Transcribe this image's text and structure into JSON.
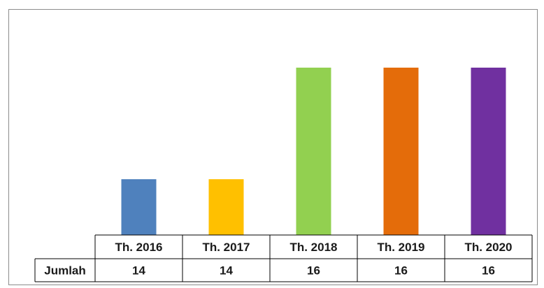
{
  "chart_data": {
    "type": "bar",
    "categories": [
      "Th. 2016",
      "Th. 2017",
      "Th. 2018",
      "Th. 2019",
      "Th. 2020"
    ],
    "series": [
      {
        "name": "Jumlah",
        "values": [
          14,
          14,
          16,
          16,
          16
        ],
        "colors": [
          "#4f81bd",
          "#ffc000",
          "#92d050",
          "#e46c0a",
          "#7030a0"
        ]
      }
    ],
    "title": "",
    "xlabel": "",
    "ylabel": "",
    "ylim": [
      13,
      16.2
    ],
    "grid": false,
    "legend": "none",
    "data_table": true
  }
}
